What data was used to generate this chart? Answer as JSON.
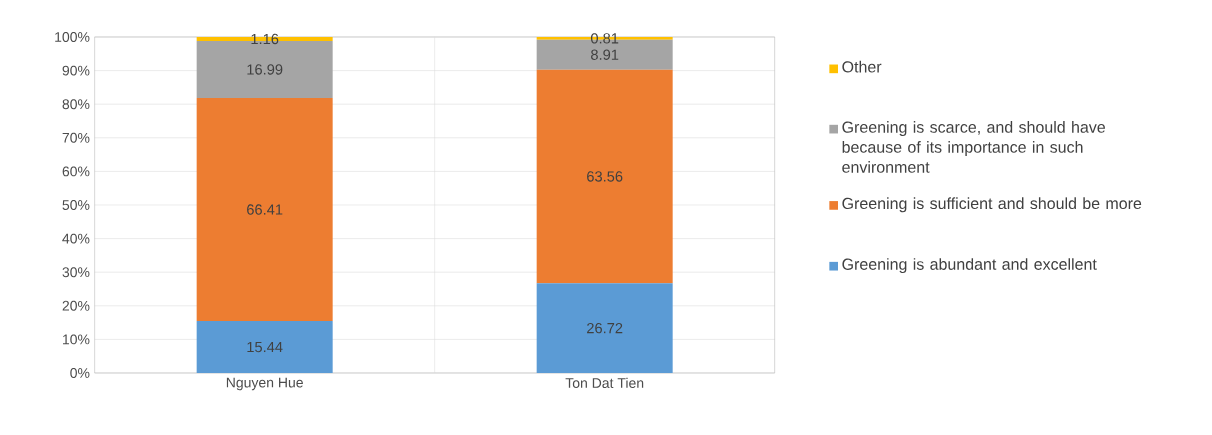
{
  "chart_data": {
    "type": "bar",
    "stacked": true,
    "categories": [
      "Nguyen Hue",
      "Ton Dat Tien"
    ],
    "series": [
      {
        "name": "Greening is abundant and excellent",
        "color": "#5b9bd5",
        "values": [
          15.44,
          26.72
        ]
      },
      {
        "name": "Greening is sufficient and should be more",
        "color": "#ed7d31",
        "values": [
          66.41,
          63.56
        ]
      },
      {
        "name": "Greening is scarce, and should have because of its importance in such environment",
        "color": "#a5a5a5",
        "values": [
          16.99,
          8.91
        ]
      },
      {
        "name": "Other",
        "color": "#ffc000",
        "values": [
          1.16,
          0.81
        ]
      }
    ],
    "ylim": [
      0,
      100
    ],
    "yticks": [
      {
        "value": 0,
        "label": "0%"
      },
      {
        "value": 10,
        "label": "10%"
      },
      {
        "value": 20,
        "label": "20%"
      },
      {
        "value": 30,
        "label": "30%"
      },
      {
        "value": 40,
        "label": "40%"
      },
      {
        "value": 50,
        "label": "50%"
      },
      {
        "value": 60,
        "label": "60%"
      },
      {
        "value": 70,
        "label": "70%"
      },
      {
        "value": 80,
        "label": "80%"
      },
      {
        "value": 90,
        "label": "90%"
      },
      {
        "value": 100,
        "label": "100%"
      }
    ],
    "data_labels": true,
    "grid": true,
    "legend": "right"
  }
}
